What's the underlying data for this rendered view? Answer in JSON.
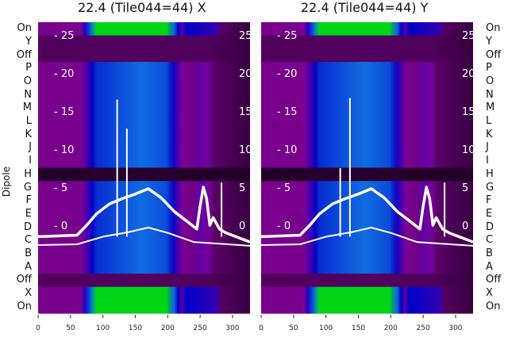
{
  "chart_data": [
    {
      "type": "heatmap",
      "title": "22.4 (Tile044=44) X",
      "ylabel": "Dipole",
      "row_labels": [
        "On",
        "Y",
        "Off",
        "P",
        "O",
        "N",
        "M",
        "L",
        "K",
        "J",
        "I",
        "H",
        "G",
        "F",
        "E",
        "D",
        "C",
        "B",
        "A",
        "Off",
        "X",
        "On"
      ],
      "inner_yticks": [
        0,
        5,
        10,
        15,
        20,
        25
      ],
      "xticks": [
        0,
        50,
        100,
        150,
        200,
        250,
        300
      ],
      "xlim": [
        0,
        327
      ],
      "overlay_lines": [
        {
          "name": "thick",
          "points": [
            [
              0,
              -1.5
            ],
            [
              60,
              -1.3
            ],
            [
              75,
              0
            ],
            [
              90,
              1.5
            ],
            [
              110,
              2.8
            ],
            [
              130,
              3.5
            ],
            [
              150,
              4.1
            ],
            [
              170,
              4.8
            ],
            [
              190,
              3.6
            ],
            [
              210,
              1.8
            ],
            [
              230,
              0.5
            ],
            [
              245,
              -0.5
            ],
            [
              250,
              2.5
            ],
            [
              255,
              5
            ],
            [
              260,
              3.5
            ],
            [
              265,
              0
            ],
            [
              270,
              1
            ],
            [
              280,
              -0.5
            ],
            [
              290,
              -1
            ],
            [
              327,
              -2.2
            ]
          ]
        },
        {
          "name": "thin",
          "points": [
            [
              0,
              -2.6
            ],
            [
              60,
              -2.5
            ],
            [
              100,
              -1.5
            ],
            [
              140,
              -0.9
            ],
            [
              170,
              -0.3
            ],
            [
              200,
              -1
            ],
            [
              240,
              -2.2
            ],
            [
              327,
              -2.7
            ]
          ]
        }
      ],
      "spikes": [
        [
          122,
          16.5
        ],
        [
          137,
          12.7
        ],
        [
          283,
          5.6
        ]
      ]
    },
    {
      "type": "heatmap",
      "title": "22.4 (Tile044=44) Y",
      "row_labels": [
        "On",
        "Y",
        "Off",
        "P",
        "O",
        "N",
        "M",
        "L",
        "K",
        "J",
        "I",
        "H",
        "G",
        "F",
        "E",
        "D",
        "C",
        "B",
        "A",
        "Off",
        "X",
        "On"
      ],
      "inner_yticks": [
        0,
        5,
        10,
        15,
        20,
        25
      ],
      "xticks": [
        0,
        50,
        100,
        150,
        200,
        250,
        300
      ],
      "xlim": [
        0,
        327
      ],
      "overlay_lines": [
        {
          "name": "thick",
          "points": [
            [
              0,
              -1.5
            ],
            [
              60,
              -1.3
            ],
            [
              75,
              0
            ],
            [
              90,
              1.5
            ],
            [
              110,
              2.8
            ],
            [
              130,
              3.5
            ],
            [
              150,
              4.1
            ],
            [
              170,
              4.8
            ],
            [
              190,
              3.6
            ],
            [
              210,
              1.8
            ],
            [
              230,
              0.5
            ],
            [
              245,
              -0.5
            ],
            [
              250,
              2.5
            ],
            [
              255,
              5
            ],
            [
              260,
              3.5
            ],
            [
              265,
              0
            ],
            [
              270,
              1
            ],
            [
              280,
              -0.5
            ],
            [
              290,
              -1
            ],
            [
              327,
              -2.2
            ]
          ]
        },
        {
          "name": "thin",
          "points": [
            [
              0,
              -2.6
            ],
            [
              60,
              -2.5
            ],
            [
              100,
              -1.5
            ],
            [
              140,
              -0.9
            ],
            [
              170,
              -0.3
            ],
            [
              200,
              -1
            ],
            [
              240,
              -2.2
            ],
            [
              327,
              -2.7
            ]
          ]
        }
      ],
      "spikes": [
        [
          122,
          7.5
        ],
        [
          137,
          16.7
        ],
        [
          283,
          5.6
        ]
      ]
    }
  ]
}
